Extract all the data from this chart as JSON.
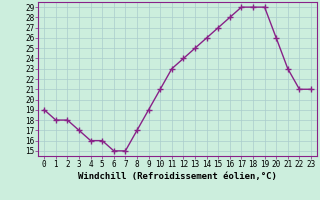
{
  "x": [
    0,
    1,
    2,
    3,
    4,
    5,
    6,
    7,
    8,
    9,
    10,
    11,
    12,
    13,
    14,
    15,
    16,
    17,
    18,
    19,
    20,
    21,
    22,
    23
  ],
  "y": [
    19,
    18,
    18,
    17,
    16,
    16,
    15,
    15,
    17,
    19,
    21,
    23,
    24,
    25,
    26,
    27,
    28,
    29,
    29,
    29,
    26,
    23,
    21,
    21
  ],
  "line_color": "#882288",
  "marker": "+",
  "marker_size": 4,
  "marker_lw": 1.0,
  "bg_color": "#cceedd",
  "grid_color": "#aacccc",
  "xlabel": "Windchill (Refroidissement éolien,°C)",
  "xlim": [
    -0.5,
    23.5
  ],
  "ylim": [
    14.5,
    29.5
  ],
  "yticks": [
    15,
    16,
    17,
    18,
    19,
    20,
    21,
    22,
    23,
    24,
    25,
    26,
    27,
    28,
    29
  ],
  "xticks": [
    0,
    1,
    2,
    3,
    4,
    5,
    6,
    7,
    8,
    9,
    10,
    11,
    12,
    13,
    14,
    15,
    16,
    17,
    18,
    19,
    20,
    21,
    22,
    23
  ],
  "tick_label_size": 5.5,
  "xlabel_size": 6.5,
  "line_width": 1.0,
  "spine_color": "#882288"
}
